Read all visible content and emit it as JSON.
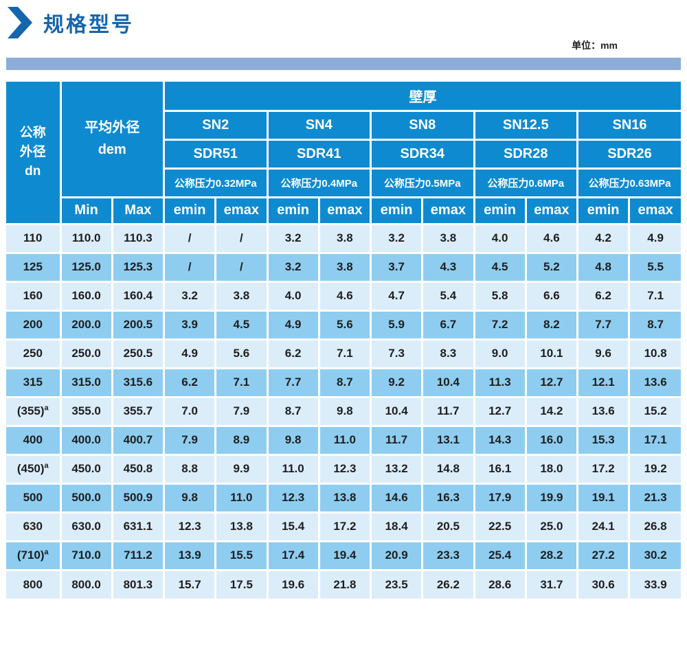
{
  "page": {
    "title": "规格型号",
    "unit_label": "单位：mm"
  },
  "colors": {
    "accent_blue": "#1566ad",
    "header_blue": "#0e8bd0",
    "row_light": "#dcedfa",
    "row_dark": "#8ecdf0",
    "band_blue": "#8badd8",
    "grid_white": "#ffffff",
    "data_text": "#1e1e1e"
  },
  "table": {
    "header": {
      "dn_lines": [
        "公称",
        "外径",
        "dn"
      ],
      "dem_line1": "平均外径",
      "dem_line2": "dem",
      "wall_thickness": "壁厚",
      "min": "Min",
      "max": "Max",
      "emin": "emin",
      "emax": "emax",
      "groups": [
        {
          "sn": "SN2",
          "sdr": "SDR51",
          "pressure": "公称压力0.32MPa"
        },
        {
          "sn": "SN4",
          "sdr": "SDR41",
          "pressure": "公称压力0.4MPa"
        },
        {
          "sn": "SN8",
          "sdr": "SDR34",
          "pressure": "公称压力0.5MPa"
        },
        {
          "sn": "SN12.5",
          "sdr": "SDR28",
          "pressure": "公称压力0.6MPa"
        },
        {
          "sn": "SN16",
          "sdr": "SDR26",
          "pressure": "公称压力0.63MPa"
        }
      ]
    },
    "rows": [
      {
        "dn": "110",
        "sup": "",
        "min": "110.0",
        "max": "110.3",
        "values": [
          "/",
          "/",
          "3.2",
          "3.8",
          "3.2",
          "3.8",
          "4.0",
          "4.6",
          "4.2",
          "4.9"
        ]
      },
      {
        "dn": "125",
        "sup": "",
        "min": "125.0",
        "max": "125.3",
        "values": [
          "/",
          "/",
          "3.2",
          "3.8",
          "3.7",
          "4.3",
          "4.5",
          "5.2",
          "4.8",
          "5.5"
        ]
      },
      {
        "dn": "160",
        "sup": "",
        "min": "160.0",
        "max": "160.4",
        "values": [
          "3.2",
          "3.8",
          "4.0",
          "4.6",
          "4.7",
          "5.4",
          "5.8",
          "6.6",
          "6.2",
          "7.1"
        ]
      },
      {
        "dn": "200",
        "sup": "",
        "min": "200.0",
        "max": "200.5",
        "values": [
          "3.9",
          "4.5",
          "4.9",
          "5.6",
          "5.9",
          "6.7",
          "7.2",
          "8.2",
          "7.7",
          "8.7"
        ]
      },
      {
        "dn": "250",
        "sup": "",
        "min": "250.0",
        "max": "250.5",
        "values": [
          "4.9",
          "5.6",
          "6.2",
          "7.1",
          "7.3",
          "8.3",
          "9.0",
          "10.1",
          "9.6",
          "10.8"
        ]
      },
      {
        "dn": "315",
        "sup": "",
        "min": "315.0",
        "max": "315.6",
        "values": [
          "6.2",
          "7.1",
          "7.7",
          "8.7",
          "9.2",
          "10.4",
          "11.3",
          "12.7",
          "12.1",
          "13.6"
        ]
      },
      {
        "dn": "(355)",
        "sup": "a",
        "min": "355.0",
        "max": "355.7",
        "values": [
          "7.0",
          "7.9",
          "8.7",
          "9.8",
          "10.4",
          "11.7",
          "12.7",
          "14.2",
          "13.6",
          "15.2"
        ]
      },
      {
        "dn": "400",
        "sup": "",
        "min": "400.0",
        "max": "400.7",
        "values": [
          "7.9",
          "8.9",
          "9.8",
          "11.0",
          "11.7",
          "13.1",
          "14.3",
          "16.0",
          "15.3",
          "17.1"
        ]
      },
      {
        "dn": "(450)",
        "sup": "a",
        "min": "450.0",
        "max": "450.8",
        "values": [
          "8.8",
          "9.9",
          "11.0",
          "12.3",
          "13.2",
          "14.8",
          "16.1",
          "18.0",
          "17.2",
          "19.2"
        ]
      },
      {
        "dn": "500",
        "sup": "",
        "min": "500.0",
        "max": "500.9",
        "values": [
          "9.8",
          "11.0",
          "12.3",
          "13.8",
          "14.6",
          "16.3",
          "17.9",
          "19.9",
          "19.1",
          "21.3"
        ]
      },
      {
        "dn": "630",
        "sup": "",
        "min": "630.0",
        "max": "631.1",
        "values": [
          "12.3",
          "13.8",
          "15.4",
          "17.2",
          "18.4",
          "20.5",
          "22.5",
          "25.0",
          "24.1",
          "26.8"
        ]
      },
      {
        "dn": "(710)",
        "sup": "a",
        "min": "710.0",
        "max": "711.2",
        "values": [
          "13.9",
          "15.5",
          "17.4",
          "19.4",
          "20.9",
          "23.3",
          "25.4",
          "28.2",
          "27.2",
          "30.2"
        ]
      },
      {
        "dn": "800",
        "sup": "",
        "min": "800.0",
        "max": "801.3",
        "values": [
          "15.7",
          "17.5",
          "19.6",
          "21.8",
          "23.5",
          "26.2",
          "28.6",
          "31.7",
          "30.6",
          "33.9"
        ]
      }
    ]
  }
}
